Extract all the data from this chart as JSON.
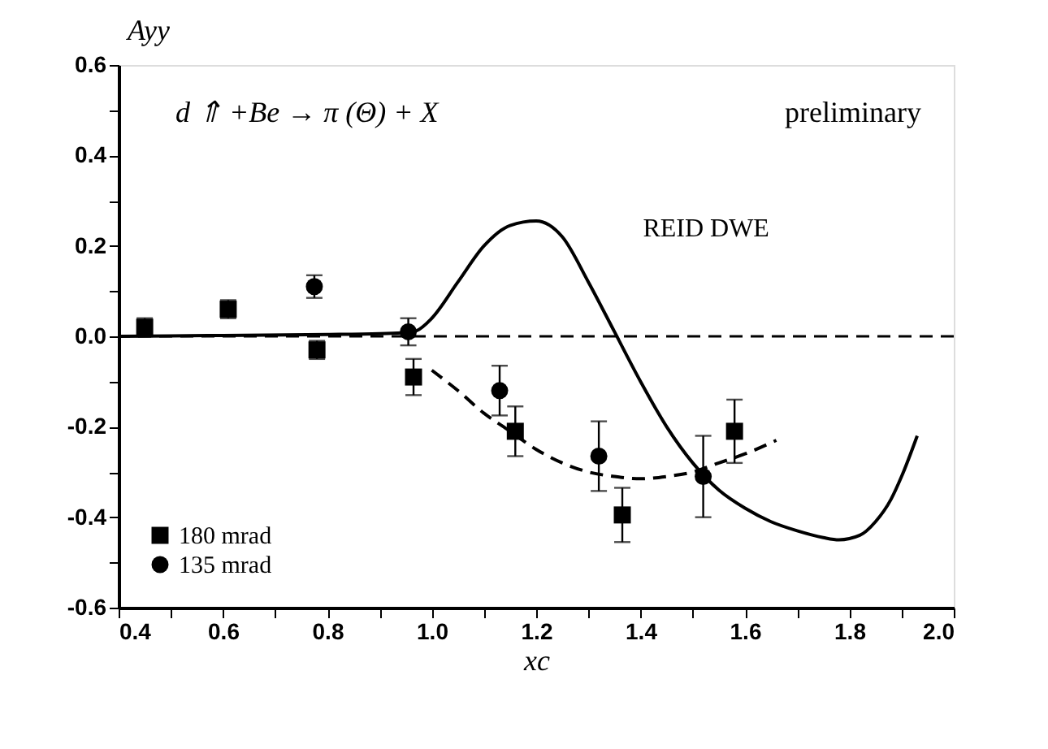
{
  "chart_data": {
    "type": "scatter",
    "xlabel": "xc",
    "ylabel": "Ayy",
    "xlim": [
      0.4,
      2.0
    ],
    "xticks": [
      0.4,
      {
        "value": 0.5,
        "label": null
      },
      0.6,
      {
        "value": 0.7,
        "label": null
      },
      0.8,
      {
        "value": 0.9,
        "label": null
      },
      {
        "value": 1.0,
        "label": "1.0"
      },
      {
        "value": 1.1,
        "label": null
      },
      1.2,
      {
        "value": 1.3,
        "label": null
      },
      1.4,
      {
        "value": 1.5,
        "label": null
      },
      1.6,
      {
        "value": 1.7,
        "label": null
      },
      1.8,
      {
        "value": 1.9,
        "label": null
      },
      {
        "value": 2.0,
        "label": "2.0"
      }
    ],
    "ylim": [
      -0.6,
      0.6
    ],
    "yticks": [
      -0.6,
      {
        "value": -0.5,
        "label": null
      },
      -0.4,
      {
        "value": -0.3,
        "label": null
      },
      -0.2,
      {
        "value": -0.1,
        "label": null
      },
      {
        "value": 0,
        "label": "0.0"
      },
      {
        "value": 0.1,
        "label": null
      },
      0.2,
      {
        "value": 0.3,
        "label": null
      },
      0.4,
      {
        "value": 0.5,
        "label": null
      },
      0.6
    ],
    "grid": false,
    "legend": "bottom left",
    "ref_lines": [
      {
        "axis": "y",
        "value": 0,
        "line_style": "dashed",
        "color": "#000000"
      }
    ],
    "series": [
      {
        "name": "180 mrad",
        "marker": "square",
        "color": "#000000",
        "x": [
          0.45,
          0.61,
          0.78,
          0.965,
          1.16,
          1.365,
          1.58
        ],
        "values": [
          0.02,
          0.06,
          -0.03,
          -0.09,
          -0.21,
          -0.395,
          -0.21
        ],
        "errors": [
          0.02,
          0.02,
          0.02,
          0.04,
          0.055,
          0.06,
          0.07
        ]
      },
      {
        "name": "135 mrad",
        "marker": "circle",
        "color": "#000000",
        "x": [
          0.775,
          0.955,
          1.13,
          1.32,
          1.52
        ],
        "values": [
          0.11,
          0.01,
          -0.12,
          -0.265,
          -0.31
        ],
        "errors": [
          0.025,
          0.03,
          0.055,
          0.077,
          0.09
        ]
      },
      {
        "type": "line",
        "line_style": "solid",
        "color": "#000000",
        "x": [
          0.4,
          0.6,
          0.8,
          0.9,
          0.95,
          0.97,
          1.0,
          1.05,
          1.1,
          1.15,
          1.2,
          1.25,
          1.3,
          1.35,
          1.4,
          1.45,
          1.5,
          1.55,
          1.6,
          1.65,
          1.7,
          1.75,
          1.78,
          1.82,
          1.85,
          1.88,
          1.9,
          1.93
        ],
        "values": [
          0.0,
          0.002,
          0.004,
          0.006,
          0.008,
          0.012,
          0.04,
          0.12,
          0.2,
          0.245,
          0.255,
          0.22,
          0.12,
          0.01,
          -0.1,
          -0.2,
          -0.28,
          -0.34,
          -0.38,
          -0.41,
          -0.43,
          -0.445,
          -0.45,
          -0.44,
          -0.41,
          -0.36,
          -0.31,
          -0.22
        ]
      },
      {
        "type": "line",
        "line_style": "dashed",
        "color": "#000000",
        "x": [
          1.0,
          1.05,
          1.1,
          1.15,
          1.2,
          1.25,
          1.3,
          1.35,
          1.4,
          1.45,
          1.5,
          1.55,
          1.6,
          1.66
        ],
        "values": [
          -0.075,
          -0.12,
          -0.17,
          -0.21,
          -0.25,
          -0.28,
          -0.3,
          -0.31,
          -0.315,
          -0.31,
          -0.3,
          -0.28,
          -0.26,
          -0.23
        ]
      }
    ],
    "annotations": [
      "d ⇑ +Be → π (Θ) + X",
      "preliminary",
      {
        "text": "REID DWE",
        "x": 1.28,
        "y": 0.15
      }
    ]
  }
}
